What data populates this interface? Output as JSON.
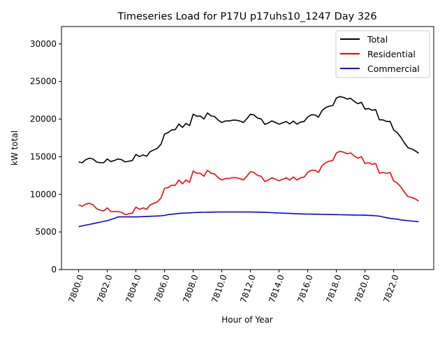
{
  "chart_data": {
    "type": "line",
    "title": "Timeseries Load for P17U p17uhs10_1247  Day 326",
    "xlabel": "Hour of Year",
    "ylabel": "kW total",
    "xlim": [
      7798.8,
      7824.8
    ],
    "ylim": [
      0,
      32300
    ],
    "x_start": 7800,
    "x_step": 0.25,
    "xticks": [
      7800,
      7802,
      7804,
      7806,
      7808,
      7810,
      7812,
      7814,
      7816,
      7818,
      7820,
      7822
    ],
    "xtick_labels": [
      "7800.0",
      "7802.0",
      "7804.0",
      "7806.0",
      "7808.0",
      "7810.0",
      "7812.0",
      "7814.0",
      "7816.0",
      "7818.0",
      "7820.0",
      "7822.0"
    ],
    "yticks": [
      0,
      5000,
      10000,
      15000,
      20000,
      25000,
      30000
    ],
    "ytick_labels": [
      "0",
      "5000",
      "10000",
      "15000",
      "20000",
      "25000",
      "30000"
    ],
    "grid": false,
    "legend_position": "top-right",
    "series": [
      {
        "name": "Total",
        "color": "#000000",
        "sum_of": [
          "Residential",
          "Commercial"
        ]
      },
      {
        "name": "Residential",
        "color": "#ff0000",
        "values": [
          8600,
          8400,
          8700,
          8800,
          8600,
          8100,
          7900,
          7800,
          8200,
          7700,
          7700,
          7700,
          7600,
          7300,
          7400,
          7500,
          8300,
          8000,
          8200,
          8000,
          8600,
          8800,
          9000,
          9500,
          10800,
          10900,
          11200,
          11200,
          11900,
          11400,
          11900,
          11600,
          13100,
          12800,
          12800,
          12400,
          13200,
          12800,
          12700,
          12200,
          11900,
          12100,
          12100,
          12200,
          12200,
          12100,
          11900,
          12400,
          13000,
          12900,
          12500,
          12400,
          11700,
          11900,
          12200,
          12000,
          11800,
          12000,
          12200,
          11900,
          12300,
          11900,
          12200,
          12300,
          12900,
          13200,
          13200,
          12900,
          13800,
          14200,
          14400,
          14500,
          15500,
          15700,
          15600,
          15400,
          15500,
          15100,
          14800,
          15000,
          14100,
          14200,
          14000,
          14100,
          12800,
          12900,
          12800,
          12900,
          11800,
          11500,
          11000,
          10300,
          9700,
          9600,
          9400,
          9100
        ]
      },
      {
        "name": "Commercial",
        "color": "#0000ff",
        "values": [
          5700,
          5800,
          5900,
          6000,
          6100,
          6200,
          6300,
          6400,
          6500,
          6650,
          6800,
          7000,
          7000,
          7000,
          7000,
          7000,
          7000,
          7020,
          7040,
          7060,
          7080,
          7100,
          7120,
          7150,
          7200,
          7300,
          7350,
          7400,
          7450,
          7500,
          7520,
          7540,
          7560,
          7580,
          7600,
          7610,
          7620,
          7630,
          7640,
          7650,
          7650,
          7650,
          7650,
          7650,
          7650,
          7650,
          7650,
          7650,
          7650,
          7640,
          7630,
          7620,
          7600,
          7580,
          7560,
          7540,
          7520,
          7500,
          7480,
          7460,
          7430,
          7420,
          7400,
          7390,
          7380,
          7370,
          7360,
          7350,
          7330,
          7320,
          7310,
          7300,
          7300,
          7290,
          7280,
          7270,
          7260,
          7250,
          7240,
          7230,
          7220,
          7200,
          7180,
          7150,
          7100,
          7000,
          6900,
          6800,
          6750,
          6700,
          6600,
          6550,
          6500,
          6450,
          6400,
          6350
        ]
      }
    ]
  }
}
